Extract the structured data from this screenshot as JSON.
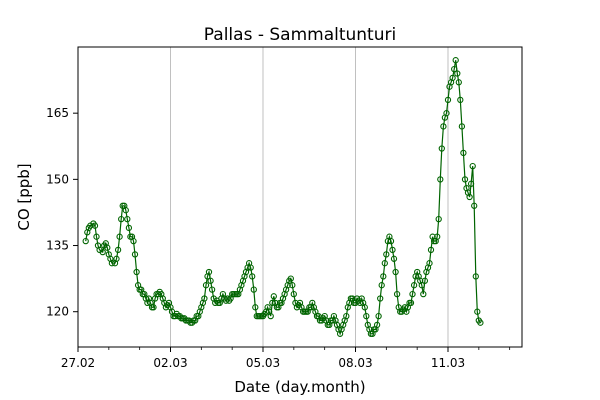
{
  "chart_data": {
    "type": "line",
    "title": "Pallas - Sammaltunturi",
    "xlabel": "Date (day.month)",
    "ylabel": "CO [ppb]",
    "x_unit": "days",
    "x_range": [
      0,
      14.4
    ],
    "xlim": [
      0,
      14.4
    ],
    "ylim": [
      112,
      180
    ],
    "x_ticks": [
      {
        "value": 0,
        "label": "27.02"
      },
      {
        "value": 3,
        "label": "02.03"
      },
      {
        "value": 6,
        "label": "05.03"
      },
      {
        "value": 9,
        "label": "08.03"
      },
      {
        "value": 12,
        "label": "11.03"
      }
    ],
    "y_ticks": [
      120,
      135,
      150,
      165
    ],
    "grid": "vertical",
    "color": "#006400",
    "series": [
      {
        "marker": "open-circle",
        "points": [
          [
            0.25,
            136
          ],
          [
            0.3,
            138
          ],
          [
            0.35,
            139
          ],
          [
            0.4,
            139.5
          ],
          [
            0.5,
            140
          ],
          [
            0.55,
            139.5
          ],
          [
            0.6,
            137
          ],
          [
            0.65,
            135
          ],
          [
            0.7,
            134
          ],
          [
            0.8,
            133.5
          ],
          [
            0.85,
            135
          ],
          [
            0.9,
            135.5
          ],
          [
            0.95,
            134.5
          ],
          [
            1.0,
            133
          ],
          [
            1.05,
            132
          ],
          [
            1.1,
            131
          ],
          [
            1.2,
            131
          ],
          [
            1.25,
            132
          ],
          [
            1.3,
            134
          ],
          [
            1.35,
            137
          ],
          [
            1.4,
            141
          ],
          [
            1.45,
            144
          ],
          [
            1.5,
            144
          ],
          [
            1.55,
            143
          ],
          [
            1.6,
            141
          ],
          [
            1.65,
            139
          ],
          [
            1.7,
            137
          ],
          [
            1.75,
            137
          ],
          [
            1.8,
            136
          ],
          [
            1.85,
            133
          ],
          [
            1.9,
            129
          ],
          [
            1.95,
            126
          ],
          [
            2.0,
            125
          ],
          [
            2.05,
            125
          ],
          [
            2.1,
            124
          ],
          [
            2.15,
            124
          ],
          [
            2.2,
            123
          ],
          [
            2.25,
            122
          ],
          [
            2.3,
            123
          ],
          [
            2.35,
            122
          ],
          [
            2.4,
            121
          ],
          [
            2.45,
            121
          ],
          [
            2.5,
            123
          ],
          [
            2.55,
            124
          ],
          [
            2.6,
            124
          ],
          [
            2.65,
            124.5
          ],
          [
            2.7,
            124
          ],
          [
            2.75,
            123
          ],
          [
            2.8,
            122
          ],
          [
            2.85,
            121
          ],
          [
            2.9,
            121.5
          ],
          [
            2.95,
            122
          ],
          [
            3.0,
            121
          ],
          [
            3.05,
            120
          ],
          [
            3.1,
            119
          ],
          [
            3.15,
            119
          ],
          [
            3.2,
            119.5
          ],
          [
            3.25,
            119
          ],
          [
            3.3,
            119
          ],
          [
            3.35,
            118.5
          ],
          [
            3.4,
            118.5
          ],
          [
            3.45,
            118.5
          ],
          [
            3.5,
            118
          ],
          [
            3.55,
            118
          ],
          [
            3.6,
            118
          ],
          [
            3.65,
            117.5
          ],
          [
            3.7,
            117.5
          ],
          [
            3.75,
            118
          ],
          [
            3.8,
            118
          ],
          [
            3.85,
            119
          ],
          [
            3.9,
            119
          ],
          [
            3.95,
            120
          ],
          [
            4.0,
            121
          ],
          [
            4.05,
            122
          ],
          [
            4.1,
            123
          ],
          [
            4.15,
            126
          ],
          [
            4.2,
            128
          ],
          [
            4.25,
            129
          ],
          [
            4.3,
            127
          ],
          [
            4.35,
            125
          ],
          [
            4.4,
            123
          ],
          [
            4.45,
            122
          ],
          [
            4.5,
            122.5
          ],
          [
            4.55,
            122
          ],
          [
            4.6,
            122
          ],
          [
            4.65,
            123
          ],
          [
            4.7,
            124
          ],
          [
            4.75,
            123
          ],
          [
            4.8,
            122.5
          ],
          [
            4.85,
            123
          ],
          [
            4.9,
            122.5
          ],
          [
            4.95,
            123
          ],
          [
            5.0,
            124
          ],
          [
            5.05,
            124
          ],
          [
            5.1,
            124
          ],
          [
            5.15,
            124
          ],
          [
            5.2,
            124
          ],
          [
            5.25,
            125
          ],
          [
            5.3,
            126
          ],
          [
            5.35,
            127
          ],
          [
            5.4,
            128
          ],
          [
            5.45,
            129
          ],
          [
            5.5,
            130
          ],
          [
            5.55,
            131
          ],
          [
            5.6,
            130
          ],
          [
            5.65,
            128
          ],
          [
            5.7,
            125
          ],
          [
            5.75,
            121
          ],
          [
            5.8,
            119
          ],
          [
            5.85,
            119
          ],
          [
            5.9,
            119
          ],
          [
            5.95,
            119
          ],
          [
            6.0,
            119
          ],
          [
            6.05,
            119.5
          ],
          [
            6.1,
            120
          ],
          [
            6.15,
            121
          ],
          [
            6.2,
            120
          ],
          [
            6.25,
            119
          ],
          [
            6.3,
            122
          ],
          [
            6.35,
            123.5
          ],
          [
            6.4,
            122
          ],
          [
            6.45,
            121
          ],
          [
            6.5,
            121
          ],
          [
            6.55,
            122
          ],
          [
            6.6,
            122
          ],
          [
            6.65,
            123
          ],
          [
            6.7,
            124
          ],
          [
            6.75,
            125
          ],
          [
            6.8,
            126
          ],
          [
            6.85,
            127
          ],
          [
            6.9,
            127.5
          ],
          [
            6.95,
            126
          ],
          [
            7.0,
            124
          ],
          [
            7.05,
            122
          ],
          [
            7.1,
            121
          ],
          [
            7.15,
            121.5
          ],
          [
            7.2,
            122
          ],
          [
            7.25,
            121
          ],
          [
            7.3,
            120
          ],
          [
            7.35,
            120
          ],
          [
            7.4,
            120
          ],
          [
            7.45,
            120
          ],
          [
            7.5,
            121
          ],
          [
            7.55,
            121
          ],
          [
            7.6,
            122
          ],
          [
            7.65,
            121
          ],
          [
            7.7,
            120
          ],
          [
            7.75,
            119
          ],
          [
            7.8,
            119
          ],
          [
            7.85,
            118
          ],
          [
            7.9,
            118
          ],
          [
            7.95,
            118.5
          ],
          [
            8.0,
            119
          ],
          [
            8.05,
            118
          ],
          [
            8.1,
            117
          ],
          [
            8.15,
            117
          ],
          [
            8.2,
            118
          ],
          [
            8.25,
            118
          ],
          [
            8.3,
            119
          ],
          [
            8.35,
            118
          ],
          [
            8.4,
            117
          ],
          [
            8.45,
            116
          ],
          [
            8.5,
            115
          ],
          [
            8.55,
            116
          ],
          [
            8.6,
            117
          ],
          [
            8.65,
            118
          ],
          [
            8.7,
            119
          ],
          [
            8.75,
            121
          ],
          [
            8.8,
            122
          ],
          [
            8.85,
            123
          ],
          [
            8.9,
            123
          ],
          [
            8.95,
            122
          ],
          [
            9.0,
            122
          ],
          [
            9.05,
            123
          ],
          [
            9.1,
            122.5
          ],
          [
            9.15,
            122
          ],
          [
            9.2,
            123
          ],
          [
            9.25,
            122
          ],
          [
            9.3,
            121
          ],
          [
            9.35,
            119
          ],
          [
            9.4,
            117
          ],
          [
            9.45,
            116
          ],
          [
            9.5,
            115
          ],
          [
            9.55,
            115
          ],
          [
            9.6,
            116
          ],
          [
            9.65,
            116
          ],
          [
            9.7,
            117
          ],
          [
            9.75,
            119
          ],
          [
            9.8,
            123
          ],
          [
            9.85,
            126
          ],
          [
            9.9,
            128
          ],
          [
            9.95,
            131
          ],
          [
            10.0,
            133
          ],
          [
            10.05,
            136
          ],
          [
            10.1,
            137
          ],
          [
            10.15,
            136
          ],
          [
            10.2,
            134
          ],
          [
            10.25,
            132
          ],
          [
            10.3,
            129
          ],
          [
            10.35,
            124
          ],
          [
            10.4,
            121
          ],
          [
            10.45,
            120
          ],
          [
            10.5,
            120
          ],
          [
            10.55,
            120.5
          ],
          [
            10.6,
            121
          ],
          [
            10.65,
            120
          ],
          [
            10.7,
            121
          ],
          [
            10.75,
            122
          ],
          [
            10.8,
            122
          ],
          [
            10.85,
            124
          ],
          [
            10.9,
            126
          ],
          [
            10.95,
            128
          ],
          [
            11.0,
            129
          ],
          [
            11.05,
            128
          ],
          [
            11.1,
            127
          ],
          [
            11.15,
            126
          ],
          [
            11.2,
            124
          ],
          [
            11.25,
            127
          ],
          [
            11.3,
            129
          ],
          [
            11.35,
            130
          ],
          [
            11.4,
            131
          ],
          [
            11.45,
            134
          ],
          [
            11.5,
            137
          ],
          [
            11.55,
            136
          ],
          [
            11.6,
            136
          ],
          [
            11.65,
            137
          ],
          [
            11.7,
            141
          ],
          [
            11.75,
            150
          ],
          [
            11.8,
            157
          ],
          [
            11.85,
            162
          ],
          [
            11.9,
            164
          ],
          [
            11.95,
            165
          ],
          [
            12.0,
            168
          ],
          [
            12.05,
            171
          ],
          [
            12.1,
            172
          ],
          [
            12.15,
            173
          ],
          [
            12.2,
            175
          ],
          [
            12.25,
            177
          ],
          [
            12.3,
            174
          ],
          [
            12.35,
            172
          ],
          [
            12.4,
            168
          ],
          [
            12.45,
            162
          ],
          [
            12.5,
            156
          ],
          [
            12.55,
            150
          ],
          [
            12.6,
            148
          ],
          [
            12.65,
            147
          ],
          [
            12.7,
            146
          ],
          [
            12.75,
            149
          ],
          [
            12.8,
            153
          ],
          [
            12.85,
            144
          ],
          [
            12.9,
            128
          ],
          [
            12.95,
            120
          ],
          [
            13.0,
            118
          ],
          [
            13.05,
            117.5
          ]
        ]
      }
    ]
  }
}
